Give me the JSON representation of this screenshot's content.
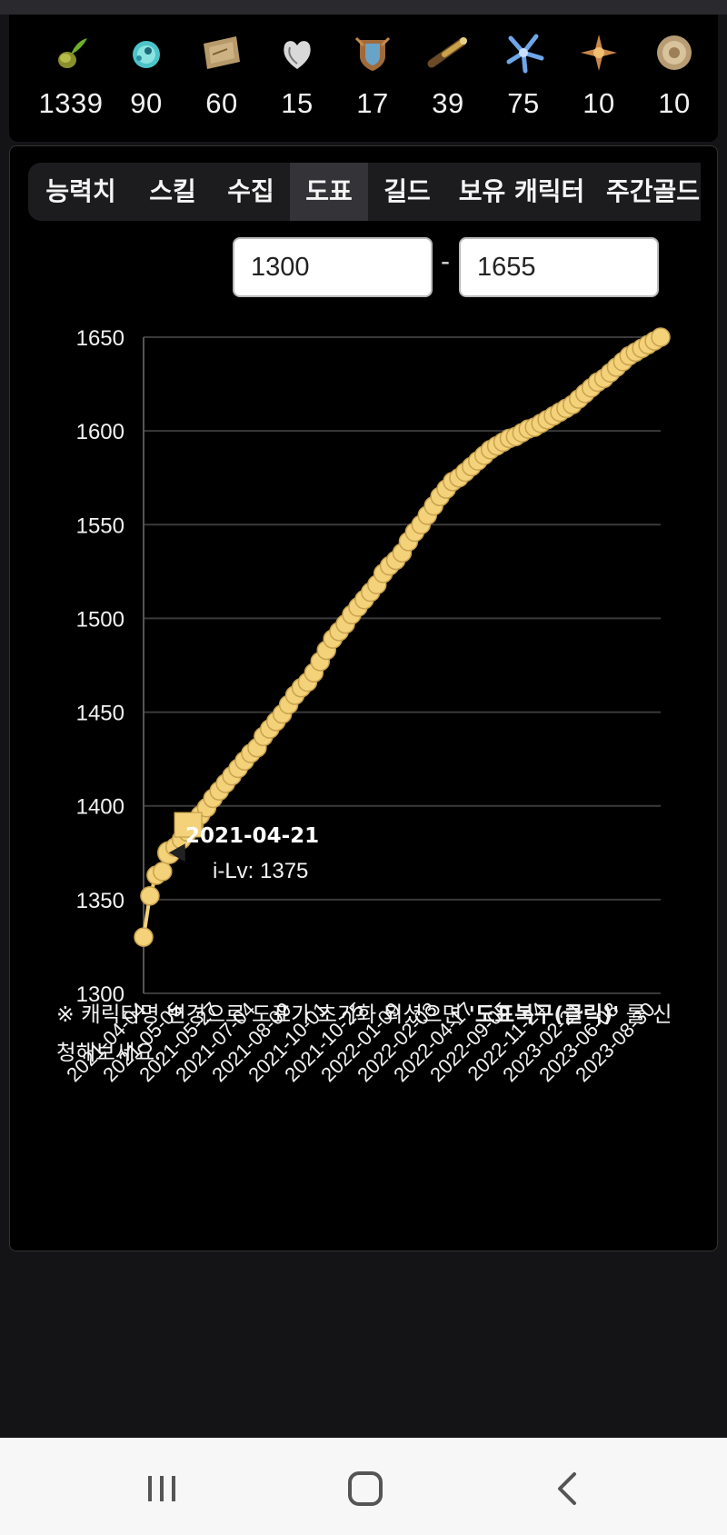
{
  "collection": [
    {
      "icon": "seed-sprout-icon",
      "count": "1339"
    },
    {
      "icon": "blue-creature-icon",
      "count": "90"
    },
    {
      "icon": "treasure-map-icon",
      "count": "60"
    },
    {
      "icon": "heart-icon",
      "count": "15"
    },
    {
      "icon": "shield-crest-icon",
      "count": "17"
    },
    {
      "icon": "spyglass-icon",
      "count": "39"
    },
    {
      "icon": "blue-flower-icon",
      "count": "75"
    },
    {
      "icon": "star-compass-icon",
      "count": "10"
    },
    {
      "icon": "round-seal-icon",
      "count": "10"
    }
  ],
  "tabs": [
    {
      "label": "능력치",
      "active": false
    },
    {
      "label": "스킬",
      "active": false
    },
    {
      "label": "수집",
      "active": false
    },
    {
      "label": "도표",
      "active": true
    },
    {
      "label": "길드",
      "active": false
    },
    {
      "label": "보유 캐릭터",
      "active": false
    },
    {
      "label": "주간골드",
      "active": false
    }
  ],
  "range": {
    "min": "1300",
    "separator": "-",
    "max": "1655"
  },
  "chart_data": {
    "type": "line",
    "title": "",
    "xlabel": "",
    "ylabel": "",
    "ylim": [
      1300,
      1650
    ],
    "yticks": [
      "1650",
      "1600",
      "1550",
      "1500",
      "1450",
      "1400",
      "1350",
      "1300"
    ],
    "x_tick_labels": [
      "2021-04-04",
      "2021-05-05",
      "2021-05-27",
      "2021-07-04",
      "2021-08-09",
      "2021-10-01",
      "2021-10-25",
      "2022-01-09",
      "2022-02-03",
      "2022-04-17",
      "2022-09-05",
      "2022-11-24",
      "2023-02-21",
      "2023-06-08",
      "2023-08-30"
    ],
    "grid": true,
    "series": [
      {
        "color": "#f3d27a",
        "y": [
          1330,
          1352,
          1363,
          1365,
          1375,
          1378,
          1382,
          1386,
          1390,
          1395,
          1399,
          1404,
          1408,
          1412,
          1416,
          1420,
          1424,
          1428,
          1431,
          1437,
          1441,
          1445,
          1449,
          1454,
          1459,
          1463,
          1466,
          1471,
          1477,
          1483,
          1489,
          1493,
          1497,
          1502,
          1506,
          1510,
          1514,
          1518,
          1524,
          1528,
          1531,
          1535,
          1541,
          1546,
          1550,
          1555,
          1560,
          1565,
          1569,
          1573,
          1575,
          1578,
          1581,
          1584,
          1587,
          1590,
          1592,
          1594,
          1596,
          1597,
          1599,
          1601,
          1602,
          1604,
          1606,
          1608,
          1610,
          1612,
          1614,
          1617,
          1620,
          1623,
          1626,
          1628,
          1631,
          1634,
          1637,
          1640,
          1642,
          1644,
          1646,
          1648,
          1650
        ]
      }
    ],
    "tooltip": {
      "date": "2021-04-21",
      "label": "i-Lv: 1375",
      "point_index": 4
    }
  },
  "note": {
    "prefix": "※ 캐릭터명 변경으로 도표가 초기화 되셨으면 ",
    "link": "'도표복구(클릭)'",
    "suffix": " 를 신청해보세요."
  },
  "navbar": [
    "recent-apps-icon",
    "home-icon",
    "back-icon"
  ]
}
